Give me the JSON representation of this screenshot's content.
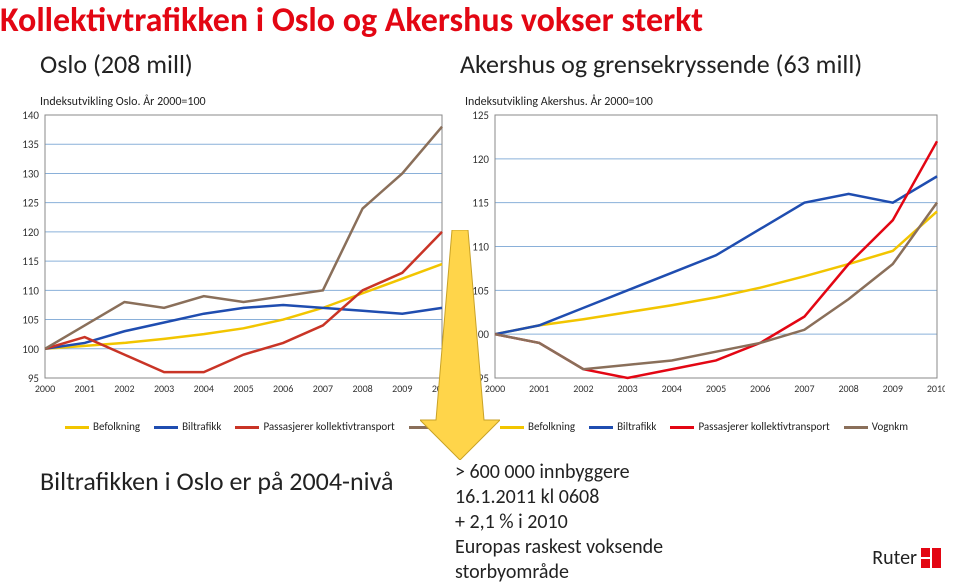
{
  "title": "Kollektivtrafikken i Oslo og Akershus vokser sterkt",
  "subtitleLeft": "Oslo (208 mill)",
  "subtitleRight": "Akershus og grensekryssende (63 mill)",
  "chartLeft": {
    "label": "Indeksutvikling Oslo. År 2000=100",
    "type": "line",
    "years": [
      2000,
      2001,
      2002,
      2003,
      2004,
      2005,
      2006,
      2007,
      2008,
      2009,
      2010
    ],
    "ylim": [
      95,
      140
    ],
    "ytick_step": 5,
    "series": [
      {
        "name": "Befolkning",
        "color": "#f2c500",
        "values": [
          100,
          100.5,
          101,
          101.7,
          102.5,
          103.5,
          105,
          107,
          109.5,
          112,
          114.5
        ]
      },
      {
        "name": "Biltrafikk",
        "color": "#1f4db0",
        "values": [
          100,
          101,
          103,
          104.5,
          106,
          107,
          107.5,
          107,
          106.5,
          106,
          107
        ]
      },
      {
        "name": "Passasjerer kollektivtransport",
        "color": "#c93426",
        "values": [
          100,
          102,
          99,
          96,
          96,
          99,
          101,
          104,
          110,
          113,
          120
        ]
      },
      {
        "name": "Vognkm",
        "color": "#8a6f5a",
        "values": [
          100,
          104,
          108,
          107,
          109,
          108,
          109,
          110,
          124,
          130,
          138
        ]
      }
    ],
    "grid_color": "#8ab0d9",
    "background": "#ffffff"
  },
  "chartRight": {
    "label": "Indeksutvikling Akershus. År 2000=100",
    "type": "line",
    "years": [
      2000,
      2001,
      2002,
      2003,
      2004,
      2005,
      2006,
      2007,
      2008,
      2009,
      2010
    ],
    "ylim": [
      95,
      125
    ],
    "ytick_step": 5,
    "series": [
      {
        "name": "Befolkning",
        "color": "#f2c500",
        "values": [
          100,
          101,
          101.7,
          102.5,
          103.3,
          104.2,
          105.3,
          106.6,
          108,
          109.5,
          114
        ]
      },
      {
        "name": "Biltrafikk",
        "color": "#1f4db0",
        "values": [
          100,
          101,
          103,
          105,
          107,
          109,
          112,
          115,
          116,
          115,
          118
        ]
      },
      {
        "name": "Passasjerer kollektivtransport",
        "color": "#e30613",
        "values": [
          100,
          99,
          96,
          95,
          96,
          97,
          99,
          102,
          108,
          113,
          122
        ]
      },
      {
        "name": "Vognkm",
        "color": "#8a6f5a",
        "values": [
          100,
          99,
          96,
          96.5,
          97,
          98,
          99,
          100.5,
          104,
          108,
          115
        ]
      }
    ],
    "grid_color": "#8ab0d9",
    "background": "#ffffff"
  },
  "legendItems": [
    {
      "label": "Befolkning",
      "color": "#f2c500"
    },
    {
      "label": "Biltrafikk",
      "color": "#1f4db0"
    },
    {
      "label": "Passasjerer kollektivtransport",
      "color": "#c93426"
    },
    {
      "label": "Vognkm",
      "color": "#8a6f5a"
    }
  ],
  "legendItemsRight": [
    {
      "label": "Befolkning",
      "color": "#f2c500"
    },
    {
      "label": "Biltrafikk",
      "color": "#1f4db0"
    },
    {
      "label": "Passasjerer kollektivtransport",
      "color": "#e30613"
    },
    {
      "label": "Vognkm",
      "color": "#8a6f5a"
    }
  ],
  "footerBig": "Biltrafikken i Oslo er på 2004-nivå",
  "bullets": [
    "> 600 000 innbyggere",
    "16.1.2011 kl 0608",
    "+ 2,1 % i 2010",
    "Europas raskest voksende",
    "storbyområde"
  ],
  "brand": "Ruter"
}
